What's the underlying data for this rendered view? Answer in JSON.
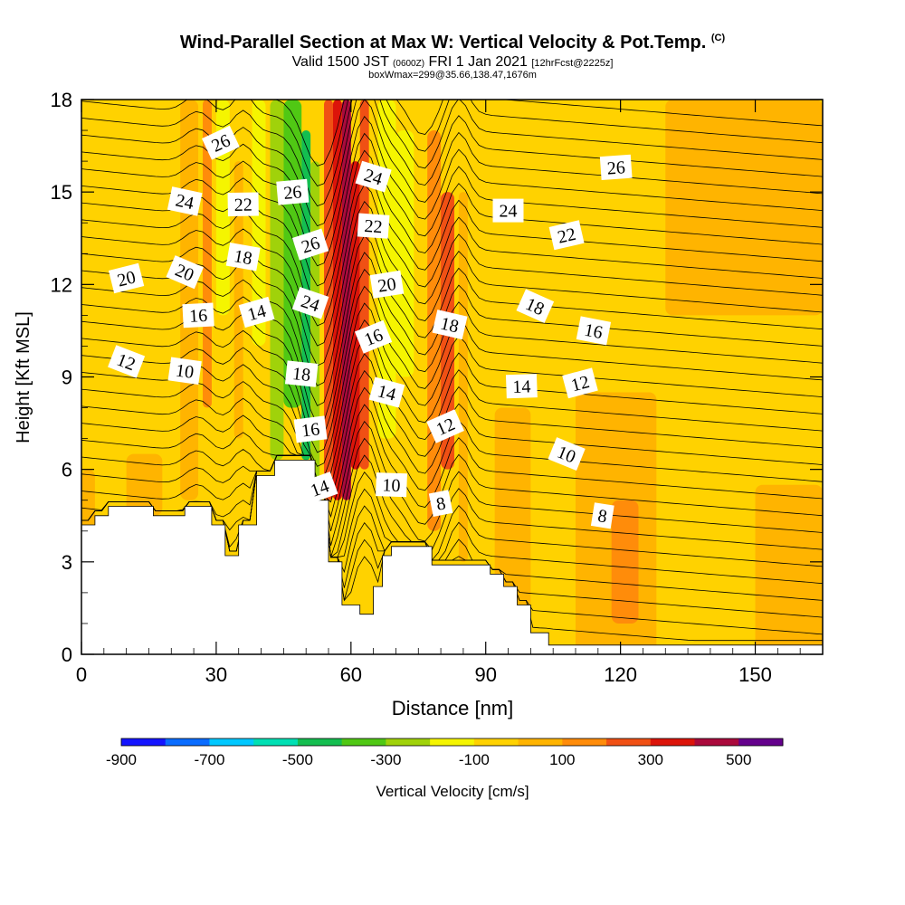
{
  "header": {
    "title": "Wind-Parallel Section at Max W: Vertical Velocity & Pot.Temp.",
    "copyright": "(C)",
    "valid_prefix": "Valid 1500 JST",
    "valid_utc": "(0600Z)",
    "valid_date": "FRI 1 Jan 2021",
    "forecast": "[12hrFcst@2225z]",
    "boxwmax": "boxWmax=299@35.66,138.47,1676m"
  },
  "colorbar": {
    "label": "Vertical Velocity [cm/s]",
    "tick_labels": [
      "-900",
      "-700",
      "-500",
      "-300",
      "-100",
      "100",
      "300",
      "500"
    ],
    "colors": [
      "#1414ff",
      "#0a6cff",
      "#00c8ff",
      "#00e0b4",
      "#14be50",
      "#50c814",
      "#a0d20a",
      "#f5f500",
      "#ffd200",
      "#ffb400",
      "#ff8c0a",
      "#f05014",
      "#dc140a",
      "#aa0a3c",
      "#64008c"
    ]
  },
  "chart_data": {
    "type": "heatmap",
    "title": "Wind-Parallel Section at Max W: Vertical Velocity & Pot.Temp.",
    "xlabel": "Distance [nm]",
    "ylabel": "Height [Kft MSL]",
    "xlim": [
      0,
      165
    ],
    "ylim": [
      0,
      18
    ],
    "xticks": [
      0,
      30,
      60,
      90,
      120,
      150
    ],
    "yticks": [
      0,
      3,
      6,
      9,
      12,
      15,
      18
    ],
    "fill_variable": "Vertical Velocity [cm/s]",
    "contour_variable": "Potential Temperature",
    "contour_levels": [
      8,
      10,
      12,
      14,
      16,
      18,
      20,
      22,
      24,
      26
    ],
    "max_vertical_velocity_cm_s": 299,
    "max_location": "35.66,138.47",
    "max_height_m": 1676,
    "terrain_profile_kft": [
      [
        0,
        4.2
      ],
      [
        3,
        4.2
      ],
      [
        3,
        4.5
      ],
      [
        6,
        4.5
      ],
      [
        6,
        4.8
      ],
      [
        16,
        4.8
      ],
      [
        16,
        4.5
      ],
      [
        23,
        4.5
      ],
      [
        23,
        4.8
      ],
      [
        29,
        4.8
      ],
      [
        29,
        4.2
      ],
      [
        32,
        4.2
      ],
      [
        32,
        3.2
      ],
      [
        35,
        3.2
      ],
      [
        35,
        4.2
      ],
      [
        39,
        4.2
      ],
      [
        39,
        5.8
      ],
      [
        43,
        5.8
      ],
      [
        43,
        6.3
      ],
      [
        52,
        6.3
      ],
      [
        52,
        5.0
      ],
      [
        55,
        5.0
      ],
      [
        55,
        3.0
      ],
      [
        58,
        3.0
      ],
      [
        58,
        1.6
      ],
      [
        62,
        1.6
      ],
      [
        62,
        1.3
      ],
      [
        65,
        1.3
      ],
      [
        65,
        2.2
      ],
      [
        67,
        2.2
      ],
      [
        67,
        3.2
      ],
      [
        69,
        3.2
      ],
      [
        69,
        3.5
      ],
      [
        78,
        3.5
      ],
      [
        78,
        2.9
      ],
      [
        91,
        2.9
      ],
      [
        91,
        2.6
      ],
      [
        94,
        2.6
      ],
      [
        94,
        2.2
      ],
      [
        97,
        2.2
      ],
      [
        97,
        1.6
      ],
      [
        100,
        1.6
      ],
      [
        100,
        0.7
      ],
      [
        104,
        0.7
      ],
      [
        104,
        0.3
      ],
      [
        165,
        0.3
      ]
    ],
    "contour_labels": [
      {
        "value": "26",
        "x": 31,
        "y": 16.6
      },
      {
        "value": "24",
        "x": 23,
        "y": 14.7
      },
      {
        "value": "22",
        "x": 36,
        "y": 14.6
      },
      {
        "value": "20",
        "x": 10,
        "y": 12.2
      },
      {
        "value": "20",
        "x": 23,
        "y": 12.4
      },
      {
        "value": "18",
        "x": 36,
        "y": 12.9
      },
      {
        "value": "16",
        "x": 26,
        "y": 11.0
      },
      {
        "value": "14",
        "x": 39,
        "y": 11.1
      },
      {
        "value": "12",
        "x": 10,
        "y": 9.5
      },
      {
        "value": "10",
        "x": 23,
        "y": 9.2
      },
      {
        "value": "26",
        "x": 47,
        "y": 15.0
      },
      {
        "value": "26",
        "x": 51,
        "y": 13.3
      },
      {
        "value": "24",
        "x": 51,
        "y": 11.4
      },
      {
        "value": "18",
        "x": 49,
        "y": 9.1
      },
      {
        "value": "16",
        "x": 51,
        "y": 7.3
      },
      {
        "value": "14",
        "x": 53,
        "y": 5.4
      },
      {
        "value": "24",
        "x": 65,
        "y": 15.5
      },
      {
        "value": "22",
        "x": 65,
        "y": 13.9
      },
      {
        "value": "20",
        "x": 68,
        "y": 12.0
      },
      {
        "value": "16",
        "x": 65,
        "y": 10.3
      },
      {
        "value": "14",
        "x": 68,
        "y": 8.5
      },
      {
        "value": "10",
        "x": 69,
        "y": 5.5
      },
      {
        "value": "8",
        "x": 80,
        "y": 4.9
      },
      {
        "value": "12",
        "x": 81,
        "y": 7.4
      },
      {
        "value": "18",
        "x": 82,
        "y": 10.7
      },
      {
        "value": "24",
        "x": 95,
        "y": 14.4
      },
      {
        "value": "22",
        "x": 108,
        "y": 13.6
      },
      {
        "value": "18",
        "x": 101,
        "y": 11.3
      },
      {
        "value": "16",
        "x": 114,
        "y": 10.5
      },
      {
        "value": "14",
        "x": 98,
        "y": 8.7
      },
      {
        "value": "12",
        "x": 111,
        "y": 8.8
      },
      {
        "value": "10",
        "x": 108,
        "y": 6.5
      },
      {
        "value": "8",
        "x": 116,
        "y": 4.5
      },
      {
        "value": "26",
        "x": 119,
        "y": 15.8
      }
    ]
  }
}
